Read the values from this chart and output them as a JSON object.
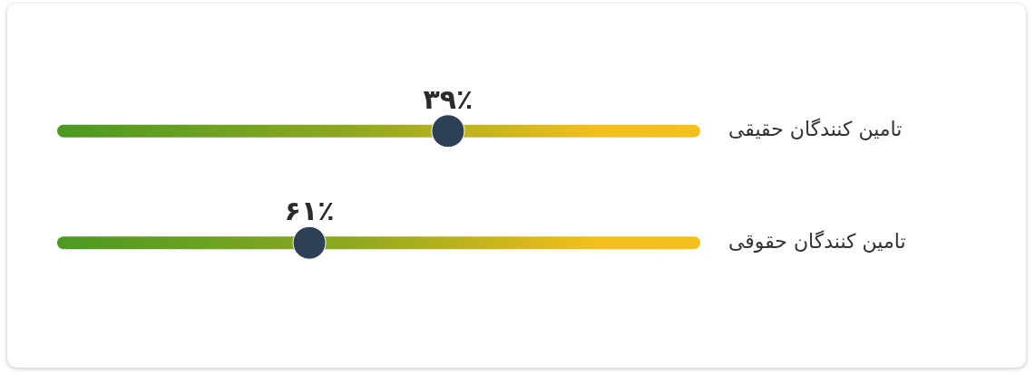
{
  "chart_data": {
    "type": "other",
    "categories": [
      "تامین کنندگان حقیقی",
      "تامین کنندگان حقوقی"
    ],
    "values": [
      39,
      61
    ],
    "value_labels": [
      "۳۹٪",
      "۶۱٪"
    ],
    "color": "#2e4057"
  }
}
